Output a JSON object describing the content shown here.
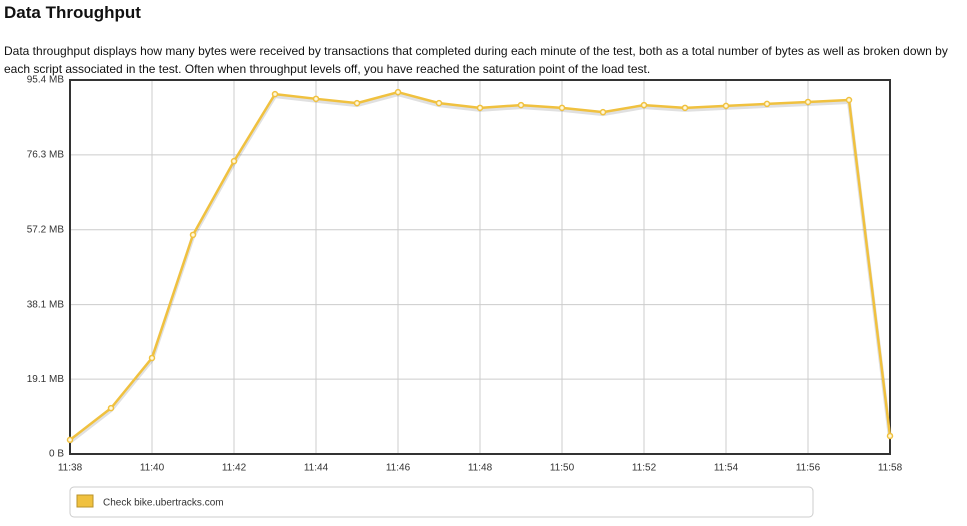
{
  "chart_data": {
    "type": "line",
    "title": "Data Throughput",
    "subtitle": "Data throughput displays how many bytes were received by transactions that completed during each minute of the test, both as a total number of bytes as well as broken down by each script associated in the test. Often when throughput levels off, you have reached the saturation point of the load test.",
    "categories": [
      "11:38",
      null,
      "11:40",
      null,
      "11:42",
      null,
      "11:44",
      null,
      "11:46",
      null,
      "11:48",
      null,
      "11:50",
      null,
      "11:52",
      null,
      "11:54",
      null,
      "11:56",
      null,
      "11:58"
    ],
    "series": [
      {
        "name": "Check bike.ubertracks.com",
        "color": "#f0c13f",
        "values": [
          3.6,
          11.7,
          24.5,
          55.9,
          74.7,
          91.8,
          90.6,
          89.5,
          92.3,
          89.5,
          88.3,
          89.0,
          88.3,
          87.2,
          89.0,
          88.3,
          88.8,
          89.3,
          89.8,
          90.3,
          4.6
        ]
      }
    ],
    "ylim": [
      0,
      95.4
    ],
    "yticks": [
      {
        "value": 0,
        "label": "0 B"
      },
      {
        "value": 19.1,
        "label": "19.1 MB"
      },
      {
        "value": 38.1,
        "label": "38.1 MB"
      },
      {
        "value": 57.2,
        "label": "57.2 MB"
      },
      {
        "value": 76.3,
        "label": "76.3 MB"
      },
      {
        "value": 95.4,
        "label": "95.4 MB"
      }
    ],
    "grid": true
  }
}
